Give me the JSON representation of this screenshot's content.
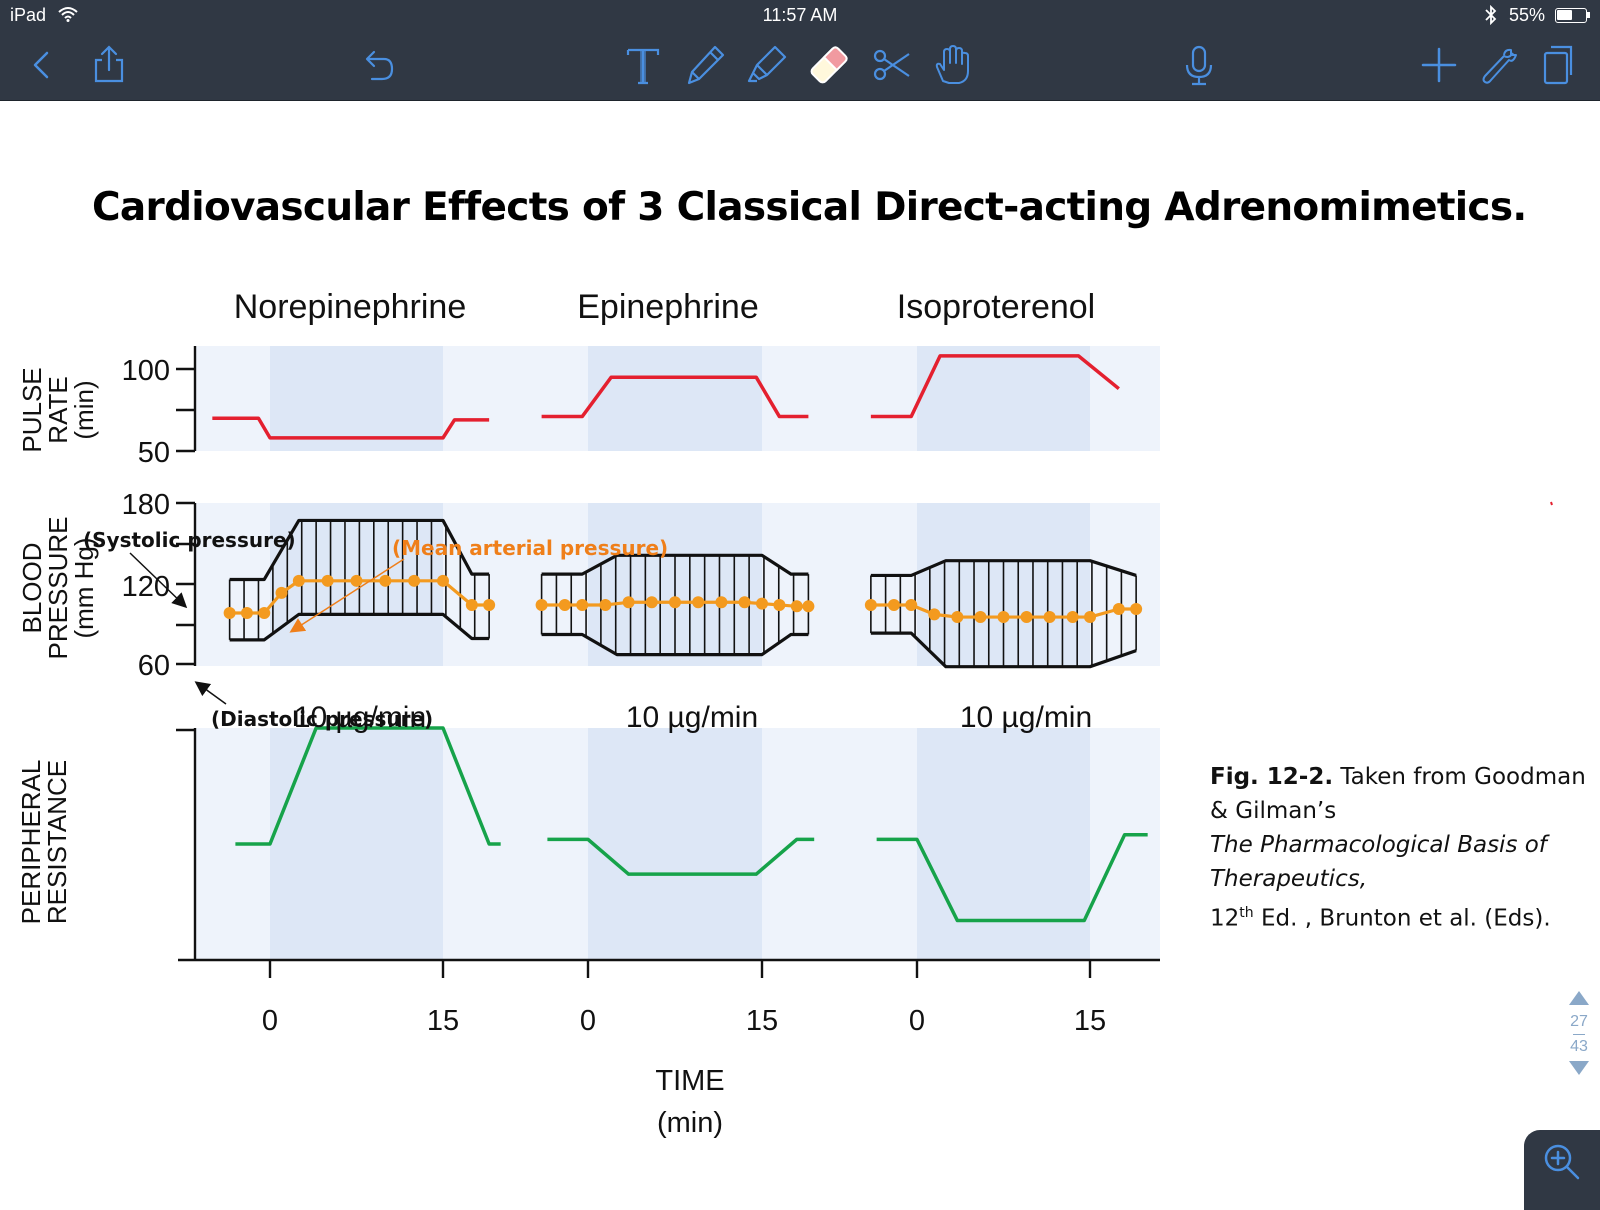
{
  "status_bar": {
    "device": "iPad",
    "time": "11:57 AM",
    "battery": "55%"
  },
  "toolbar": {
    "icons": [
      "back-chevron-icon",
      "share-icon",
      "undo-icon",
      "text-tool-icon",
      "pen-icon",
      "highlighter-icon",
      "eraser-icon",
      "scissors-icon",
      "hand-icon",
      "microphone-icon",
      "add-icon",
      "wrench-icon",
      "pages-icon"
    ],
    "accent": "#4a8fe0"
  },
  "title": "Cardiovascular Effects of 3 Classical Direct-acting Adrenomimetics.",
  "chart_data": {
    "type": "line",
    "panels": [
      "Norepinephrine",
      "Epinephrine",
      "Isoproterenol"
    ],
    "dose_labels": [
      "10 µg/min",
      "10 µg/min",
      "10 µg/min"
    ],
    "x": {
      "ticks": [
        "0",
        "15",
        "0",
        "15",
        "0",
        "15"
      ],
      "label_line1": "TIME",
      "label_line2": "(min)",
      "range": [
        -4,
        19
      ]
    },
    "pulse_rate": {
      "ylabel": [
        "PULSE",
        "RATE",
        "(min)"
      ],
      "ticks": [
        "100",
        "50"
      ],
      "ylim": [
        45,
        110
      ],
      "color": "#e4202f",
      "series": [
        {
          "x": [
            -5,
            -1,
            0,
            15,
            16,
            19
          ],
          "y": [
            70,
            70,
            58,
            58,
            69,
            69
          ]
        },
        {
          "x": [
            -4,
            -0.5,
            2,
            14.5,
            16.5,
            19
          ],
          "y": [
            71,
            71,
            95,
            95,
            71,
            71
          ]
        },
        {
          "x": [
            -4,
            -0.5,
            2,
            14,
            17.5
          ],
          "y": [
            71,
            71,
            108,
            108,
            88
          ]
        }
      ]
    },
    "blood_pressure": {
      "ylabel": [
        "BLOOD",
        "PRESSURE",
        "(mm Hg)"
      ],
      "ticks": [
        "180",
        "120",
        "60"
      ],
      "ylim": [
        60,
        180
      ],
      "systolic_color": "#111111",
      "mean_color": "#f39a1f",
      "series": [
        {
          "systolic": {
            "x": [
              -3.5,
              -0.5,
              2.5,
              15,
              17.5,
              19
            ],
            "y": [
              123,
              123,
              167,
              167,
              127,
              127
            ]
          },
          "diastolic": {
            "x": [
              -3.5,
              -0.5,
              2.5,
              15,
              17.5,
              19
            ],
            "y": [
              78,
              78,
              97,
              97,
              79,
              79
            ]
          },
          "mean": {
            "x": [
              -3.5,
              -2,
              -0.5,
              1,
              2.5,
              5,
              7.5,
              10,
              12.5,
              15,
              17.5,
              19
            ],
            "y": [
              98,
              98,
              98,
              113,
              122,
              122,
              122,
              122,
              122,
              122,
              104,
              104
            ]
          }
        },
        {
          "systolic": {
            "x": [
              -4,
              -0.5,
              2.5,
              15,
              17.5,
              19
            ],
            "y": [
              127,
              127,
              141,
              141,
              127,
              127
            ]
          },
          "diastolic": {
            "x": [
              -4,
              -0.5,
              2.5,
              15,
              17.5,
              19
            ],
            "y": [
              82,
              82,
              67,
              67,
              82,
              82
            ]
          },
          "mean": {
            "x": [
              -4,
              -2,
              -0.5,
              1.5,
              3.5,
              5.5,
              7.5,
              9.5,
              11.5,
              13.5,
              15,
              16.5,
              18,
              19
            ],
            "y": [
              104,
              104,
              104,
              104,
              106,
              106,
              106,
              106,
              106,
              106,
              105,
              104,
              103,
              103
            ]
          }
        },
        {
          "systolic": {
            "x": [
              -4,
              -0.5,
              2.5,
              15,
              19
            ],
            "y": [
              126,
              126,
              137,
              137,
              126
            ]
          },
          "diastolic": {
            "x": [
              -4,
              -0.5,
              2.5,
              15,
              19
            ],
            "y": [
              83,
              83,
              58,
              58,
              70
            ]
          },
          "mean": {
            "x": [
              -4,
              -2,
              -0.5,
              1.5,
              3.5,
              5.5,
              7.5,
              9.5,
              11.5,
              13.5,
              15,
              17.5,
              19
            ],
            "y": [
              104,
              104,
              104,
              97,
              95,
              95,
              95,
              95,
              95,
              95,
              95,
              101,
              101
            ]
          }
        }
      ]
    },
    "peripheral_resistance": {
      "ylabel": [
        "PERIPHERAL",
        "RESISTANCE"
      ],
      "ylim": [
        0,
        10
      ],
      "color": "#16a34a",
      "series": [
        {
          "x": [
            -3,
            0,
            4,
            15,
            19,
            20
          ],
          "y": [
            5,
            5,
            10,
            10,
            5,
            5
          ]
        },
        {
          "x": [
            -3.5,
            0,
            3.5,
            14.5,
            18,
            19.5
          ],
          "y": [
            5.2,
            5.2,
            3.7,
            3.7,
            5.2,
            5.2
          ]
        },
        {
          "x": [
            -3.5,
            0,
            3.5,
            14.5,
            18,
            20
          ],
          "y": [
            5.2,
            5.2,
            1.7,
            1.7,
            5.4,
            5.4
          ]
        }
      ]
    }
  },
  "annotations": {
    "systolic": "(Systolic pressure)",
    "mean": "(Mean arterial pressure)",
    "diastolic": "(Diastolic pressure)",
    "mean_color": "#ef7f1a"
  },
  "caption": {
    "fig": "Fig. 12-2.",
    "line1": " Taken from Goodman & Gilman’s",
    "italic": "The Pharmacological Basis of Therapeutics,",
    "edition_num": "12",
    "edition_sup": "th",
    "edition_rest": " Ed. , Brunton et al. (Eds)."
  },
  "pager": {
    "current": "27",
    "total": "43"
  }
}
